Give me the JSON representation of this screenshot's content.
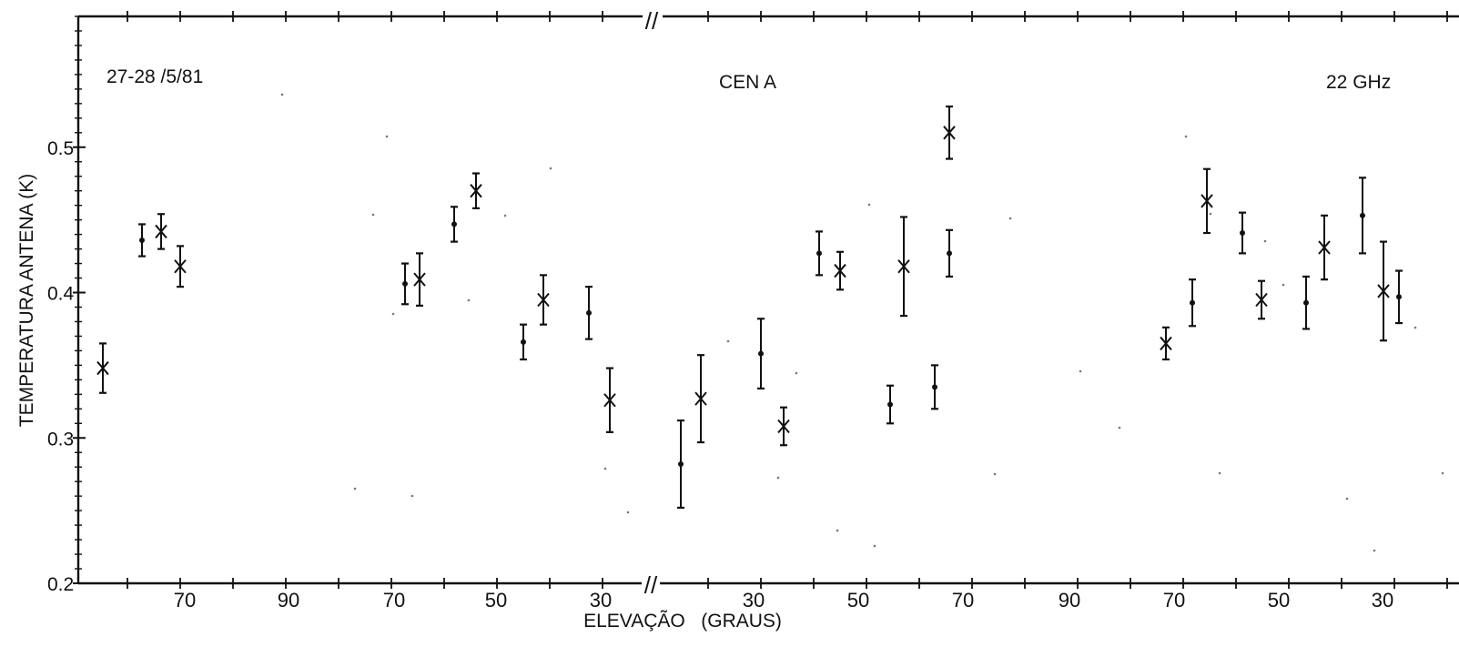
{
  "colors": {
    "ink": "#111111",
    "background": "#ffffff"
  },
  "chart_data": {
    "type": "scatter",
    "title": "CEN A",
    "date_label": "27-28 /5/81",
    "frequency_label": "22 GHz",
    "xlabel": "ELEVAÇÃO   (GRAUS)",
    "ylabel": "TEMPERATURA ANTENA (K)",
    "ylim": [
      0.2,
      0.59
    ],
    "y_ticks": [
      "0.2",
      "0.3",
      "0.4",
      "0.5"
    ],
    "x_tick_labels": [
      "70",
      "90",
      "70",
      "50",
      "30",
      "30",
      "50",
      "70",
      "90",
      "70",
      "50",
      "30"
    ],
    "axis_break_marks": [
      "//",
      "//"
    ],
    "grid": false,
    "legend": "none",
    "error_bars": true,
    "marker_types": [
      "cross",
      "dot"
    ],
    "points": [
      {
        "seq": 1,
        "y": 0.348,
        "err": 0.017,
        "marker": "cross"
      },
      {
        "seq": 2,
        "y": 0.436,
        "err": 0.011,
        "marker": "dot"
      },
      {
        "seq": 3,
        "y": 0.442,
        "err": 0.012,
        "marker": "cross"
      },
      {
        "seq": 4,
        "y": 0.418,
        "err": 0.014,
        "marker": "cross"
      },
      {
        "seq": 5,
        "y": 0.406,
        "err": 0.014,
        "marker": "dot"
      },
      {
        "seq": 6,
        "y": 0.409,
        "err": 0.018,
        "marker": "cross"
      },
      {
        "seq": 7,
        "y": 0.447,
        "err": 0.012,
        "marker": "dot"
      },
      {
        "seq": 8,
        "y": 0.47,
        "err": 0.012,
        "marker": "cross"
      },
      {
        "seq": 9,
        "y": 0.366,
        "err": 0.012,
        "marker": "dot"
      },
      {
        "seq": 10,
        "y": 0.395,
        "err": 0.017,
        "marker": "cross"
      },
      {
        "seq": 11,
        "y": 0.386,
        "err": 0.018,
        "marker": "dot"
      },
      {
        "seq": 12,
        "y": 0.326,
        "err": 0.022,
        "marker": "cross"
      },
      {
        "seq": 13,
        "y": 0.282,
        "err": 0.03,
        "marker": "dot"
      },
      {
        "seq": 14,
        "y": 0.327,
        "err": 0.03,
        "marker": "cross"
      },
      {
        "seq": 15,
        "y": 0.358,
        "err": 0.024,
        "marker": "dot"
      },
      {
        "seq": 16,
        "y": 0.308,
        "err": 0.013,
        "marker": "cross"
      },
      {
        "seq": 17,
        "y": 0.427,
        "err": 0.015,
        "marker": "dot"
      },
      {
        "seq": 18,
        "y": 0.415,
        "err": 0.013,
        "marker": "cross"
      },
      {
        "seq": 19,
        "y": 0.323,
        "err": 0.013,
        "marker": "dot"
      },
      {
        "seq": 20,
        "y": 0.418,
        "err": 0.034,
        "marker": "cross"
      },
      {
        "seq": 21,
        "y": 0.335,
        "err": 0.015,
        "marker": "dot"
      },
      {
        "seq": 22,
        "y": 0.51,
        "err": 0.018,
        "marker": "cross"
      },
      {
        "seq": 23,
        "y": 0.427,
        "err": 0.016,
        "marker": "dot"
      },
      {
        "seq": 24,
        "y": 0.365,
        "err": 0.011,
        "marker": "cross"
      },
      {
        "seq": 25,
        "y": 0.393,
        "err": 0.016,
        "marker": "dot"
      },
      {
        "seq": 26,
        "y": 0.463,
        "err": 0.022,
        "marker": "cross"
      },
      {
        "seq": 27,
        "y": 0.441,
        "err": 0.014,
        "marker": "dot"
      },
      {
        "seq": 28,
        "y": 0.395,
        "err": 0.013,
        "marker": "cross"
      },
      {
        "seq": 29,
        "y": 0.393,
        "err": 0.018,
        "marker": "dot"
      },
      {
        "seq": 30,
        "y": 0.431,
        "err": 0.022,
        "marker": "cross"
      },
      {
        "seq": 31,
        "y": 0.453,
        "err": 0.026,
        "marker": "dot"
      },
      {
        "seq": 32,
        "y": 0.401,
        "err": 0.034,
        "marker": "cross"
      },
      {
        "seq": 33,
        "y": 0.397,
        "err": 0.018,
        "marker": "dot"
      }
    ]
  }
}
